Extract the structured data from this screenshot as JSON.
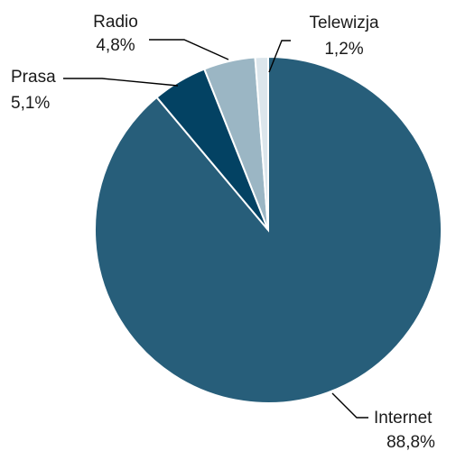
{
  "chart_data": {
    "type": "pie",
    "title": "",
    "start_angle_deg": 0,
    "direction": "clockwise",
    "legend": "none",
    "slices": [
      {
        "name": "Internet",
        "value": 88.8,
        "label": "88,8%",
        "color": "#275e7a"
      },
      {
        "name": "Prasa",
        "value": 5.1,
        "label": "5,1%",
        "color": "#034263"
      },
      {
        "name": "Radio",
        "value": 4.8,
        "label": "4,8%",
        "color": "#9bb6c4"
      },
      {
        "name": "Telewizja",
        "value": 1.2,
        "label": "1,2%",
        "color": "#dce6ec"
      }
    ]
  }
}
